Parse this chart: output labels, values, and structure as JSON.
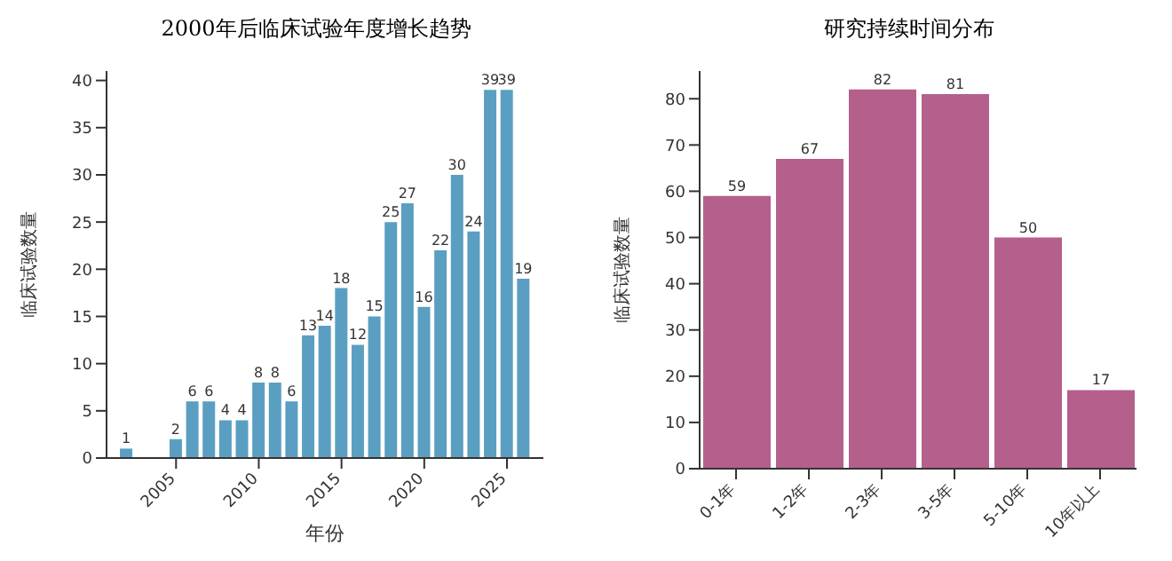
{
  "chart_data": [
    {
      "type": "bar",
      "title": "2000年后临床试验年度增长趋势",
      "xlabel": "年份",
      "ylabel": "临床试验数量",
      "x": [
        2002,
        2005,
        2006,
        2007,
        2008,
        2009,
        2010,
        2011,
        2012,
        2013,
        2014,
        2015,
        2016,
        2017,
        2018,
        2019,
        2020,
        2021,
        2022,
        2023,
        2024,
        2025,
        2026
      ],
      "values": [
        1,
        2,
        6,
        6,
        4,
        4,
        8,
        8,
        6,
        13,
        14,
        18,
        12,
        15,
        25,
        27,
        16,
        22,
        30,
        24,
        39,
        39,
        19
      ],
      "color": "#5a9fc2",
      "xlim": [
        2000.8,
        2027.2
      ],
      "xticks": [
        2005,
        2010,
        2015,
        2020,
        2025
      ],
      "ylim": [
        0,
        41
      ],
      "yticks": [
        0,
        5,
        10,
        15,
        20,
        25,
        30,
        35,
        40
      ],
      "data_labels": true,
      "grid": false
    },
    {
      "type": "bar",
      "title": "研究持续时间分布",
      "ylabel": "临床试验数量",
      "categories": [
        "0-1年",
        "1-2年",
        "2-3年",
        "3-5年",
        "5-10年",
        "10年以上"
      ],
      "values": [
        59,
        67,
        82,
        81,
        50,
        17
      ],
      "color": "#b5608c",
      "ylim": [
        0,
        86
      ],
      "yticks": [
        0,
        10,
        20,
        30,
        40,
        50,
        60,
        70,
        80
      ],
      "data_labels": true,
      "grid": false
    }
  ]
}
